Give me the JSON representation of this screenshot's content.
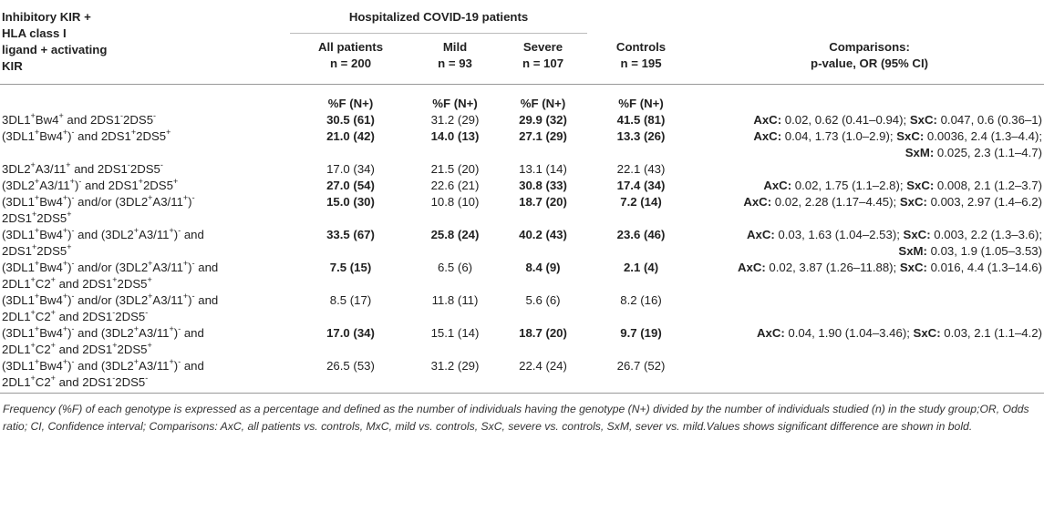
{
  "header": {
    "col0": [
      "Inhibitory KIR +",
      "HLA class I",
      "ligand + activating",
      "KIR"
    ],
    "hospitalized": "Hospitalized COVID-19 patients",
    "all_patients": "All patients",
    "all_n": "n = 200",
    "mild": "Mild",
    "mild_n": "n = 93",
    "severe": "Severe",
    "severe_n": "n = 107",
    "controls": "Controls",
    "controls_n": "n = 195",
    "comparisons": "Comparisons:",
    "comparisons_sub": "p-value, OR (95% CI)",
    "pct_label": "%F (N+)"
  },
  "rows": [
    {
      "label": [
        "<b class='n'></b>3DL1<sup>+</sup>Bw4<sup>+</sup> and 2DS1<sup>-</sup>2DS5<sup>-</sup>"
      ],
      "all": "30.5 (61)",
      "all_b": true,
      "mild": "31.2 (29)",
      "mild_b": false,
      "severe": "29.9 (32)",
      "severe_b": true,
      "controls": "41.5 (81)",
      "controls_b": true,
      "comp": [
        "<b>AxC:</b> 0.02, 0.62 (0.41–0.94); <b>SxC:</b> 0.047, 0.6 (0.36–1)"
      ]
    },
    {
      "label": [
        "(3DL1<sup>+</sup>Bw4<sup>+</sup>)<sup>-</sup> and 2DS1<sup>+</sup>2DS5<sup>+</sup>"
      ],
      "all": "21.0 (42)",
      "all_b": true,
      "mild": "14.0 (13)",
      "mild_b": true,
      "severe": "27.1 (29)",
      "severe_b": true,
      "controls": "13.3 (26)",
      "controls_b": true,
      "comp": [
        "<b>AxC:</b> 0.04, 1.73 (1.0–2.9); <b>SxC:</b> 0.0036, 2.4 (1.3–4.4);",
        "<b>SxM:</b> 0.025, 2.3 (1.1–4.7)"
      ]
    },
    {
      "label": [
        "3DL2<sup>+</sup>A3/11<sup>+</sup> and 2DS1<sup>-</sup>2DS5<sup>-</sup>"
      ],
      "all": "17.0 (34)",
      "all_b": false,
      "mild": "21.5 (20)",
      "mild_b": false,
      "severe": "13.1 (14)",
      "severe_b": false,
      "controls": "22.1 (43)",
      "controls_b": false,
      "comp": []
    },
    {
      "label": [
        "(3DL2<sup>+</sup>A3/11<sup>+</sup>)<sup>-</sup> and 2DS1<sup>+</sup>2DS5<sup>+</sup>"
      ],
      "all": "27.0 (54)",
      "all_b": true,
      "mild": "22.6 (21)",
      "mild_b": false,
      "severe": "30.8 (33)",
      "severe_b": true,
      "controls": "17.4 (34)",
      "controls_b": true,
      "comp": [
        "<b>AxC:</b> 0.02, 1.75 (1.1–2.8); <b>SxC:</b> 0.008, 2.1 (1.2–3.7)"
      ]
    },
    {
      "label": [
        "(3DL1<sup>+</sup>Bw4<sup>+</sup>)<sup>-</sup> and/or (3DL2<sup>+</sup>A3/11<sup>+</sup>)<sup>-</sup>",
        "2DS1<sup>+</sup>2DS5<sup>+</sup>"
      ],
      "all": "15.0 (30)",
      "all_b": true,
      "mild": "10.8 (10)",
      "mild_b": false,
      "severe": "18.7 (20)",
      "severe_b": true,
      "controls": "7.2 (14)",
      "controls_b": true,
      "comp": [
        "<b>AxC:</b> 0.02, 2.28 (1.17–4.45); <b>SxC:</b> 0.003, 2.97 (1.4–6.2)"
      ]
    },
    {
      "label": [
        "(3DL1<sup>+</sup>Bw4<sup>+</sup>)<sup>-</sup> and (3DL2<sup>+</sup>A3/11<sup>+</sup>)<sup>-</sup> and",
        "2DS1<sup>+</sup>2DS5<sup>+</sup>"
      ],
      "all": "33.5 (67)",
      "all_b": true,
      "mild": "25.8 (24)",
      "mild_b": true,
      "severe": "40.2 (43)",
      "severe_b": true,
      "controls": "23.6 (46)",
      "controls_b": true,
      "comp": [
        "<b>AxC:</b> 0.03, 1.63 (1.04–2.53); <b>SxC:</b> 0.003, 2.2 (1.3–3.6);",
        "<b>SxM:</b> 0.03, 1.9 (1.05–3.53)"
      ]
    },
    {
      "label": [
        "(3DL1<sup>+</sup>Bw4<sup>+</sup>)<sup>-</sup> and/or (3DL2<sup>+</sup>A3/11<sup>+</sup>)<sup>-</sup> and",
        "2DL1<sup>+</sup>C2<sup>+</sup> and 2DS1<sup>+</sup>2DS5<sup>+</sup>"
      ],
      "all": "7.5 (15)",
      "all_b": true,
      "mild": "6.5 (6)",
      "mild_b": false,
      "severe": "8.4 (9)",
      "severe_b": true,
      "controls": "2.1 (4)",
      "controls_b": true,
      "comp": [
        "<b>AxC:</b> 0.02, 3.87 (1.26–11.88); <b>SxC:</b> 0.016, 4.4 (1.3–14.6)"
      ]
    },
    {
      "label": [
        "(3DL1<sup>+</sup>Bw4<sup>+</sup>)<sup>-</sup> and/or (3DL2<sup>+</sup>A3/11<sup>+</sup>)<sup>-</sup> and",
        "2DL1<sup>+</sup>C2<sup>+</sup> and 2DS1<sup>-</sup>2DS5<sup>-</sup>"
      ],
      "all": "8.5 (17)",
      "all_b": false,
      "mild": "11.8 (11)",
      "mild_b": false,
      "severe": "5.6 (6)",
      "severe_b": false,
      "controls": "8.2 (16)",
      "controls_b": false,
      "comp": []
    },
    {
      "label": [
        "(3DL1<sup>+</sup>Bw4<sup>+</sup>)<sup>-</sup> and (3DL2<sup>+</sup>A3/11<sup>+</sup>)<sup>-</sup> and",
        "2DL1<sup>+</sup>C2<sup>+</sup> and 2DS1<sup>+</sup>2DS5<sup>+</sup>"
      ],
      "all": "17.0 (34)",
      "all_b": true,
      "mild": "15.1 (14)",
      "mild_b": false,
      "severe": "18.7 (20)",
      "severe_b": true,
      "controls": "9.7 (19)",
      "controls_b": true,
      "comp": [
        "<b>AxC:</b> 0.04, 1.90 (1.04–3.46); <b>SxC:</b> 0.03, 2.1 (1.1–4.2)"
      ]
    },
    {
      "label": [
        "(3DL1<sup>+</sup>Bw4<sup>+</sup>)<sup>-</sup> and (3DL2<sup>+</sup>A3/11<sup>+</sup>)<sup>-</sup> and",
        "2DL1<sup>+</sup>C2<sup>+</sup> and 2DS1<sup>-</sup>2DS5<sup>-</sup>"
      ],
      "all": "26.5 (53)",
      "all_b": false,
      "mild": "31.2 (29)",
      "mild_b": false,
      "severe": "22.4 (24)",
      "severe_b": false,
      "controls": "26.7 (52)",
      "controls_b": false,
      "comp": []
    }
  ],
  "footnote": "Frequency (%F) of each genotype is expressed as a percentage and defined as the number of individuals having the genotype (N+) divided by the number of individuals studied (n) in the study group;OR, Odds ratio; CI, Confidence interval; Comparisons: AxC, all patients vs. controls, MxC, mild vs. controls, SxC, severe vs. controls, SxM, sever vs. mild.Values shows significant difference are shown in bold."
}
